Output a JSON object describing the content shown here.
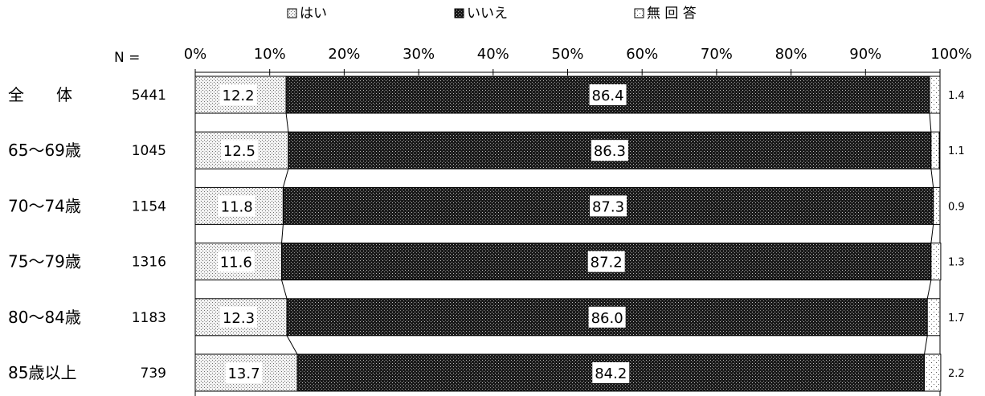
{
  "chart_data": {
    "type": "bar",
    "orientation": "horizontal",
    "stacked": true,
    "xlim": [
      0,
      100
    ],
    "x_ticks": [
      "0%",
      "10%",
      "20%",
      "30%",
      "40%",
      "50%",
      "60%",
      "70%",
      "80%",
      "90%",
      "100%"
    ],
    "n_header": "N =",
    "categories": [
      "全　　体",
      "65～69歳",
      "70～74歳",
      "75～79歳",
      "80～84歳",
      "85歳以上"
    ],
    "n": [
      "5441",
      "1045",
      "1154",
      "1316",
      "1183",
      "739"
    ],
    "series": [
      {
        "name": "はい",
        "values": [
          12.2,
          12.5,
          11.8,
          11.6,
          12.3,
          13.7
        ],
        "labels": [
          "12.2",
          "12.5",
          "11.8",
          "11.6",
          "12.3",
          "13.7"
        ],
        "pattern": "light-dots"
      },
      {
        "name": "いいえ",
        "values": [
          86.4,
          86.3,
          87.3,
          87.2,
          86.0,
          84.2
        ],
        "labels": [
          "86.4",
          "86.3",
          "87.3",
          "87.2",
          "86.0",
          "84.2"
        ],
        "pattern": "dark-dots"
      },
      {
        "name": "無 回 答",
        "values": [
          1.4,
          1.1,
          0.9,
          1.3,
          1.7,
          2.2
        ],
        "labels": [
          "1.4",
          "1.1",
          "0.9",
          "1.3",
          "1.7",
          "2.2"
        ],
        "pattern": "sparse-dots"
      }
    ],
    "legend_position": "top",
    "connector_lines": true,
    "grid": false
  }
}
